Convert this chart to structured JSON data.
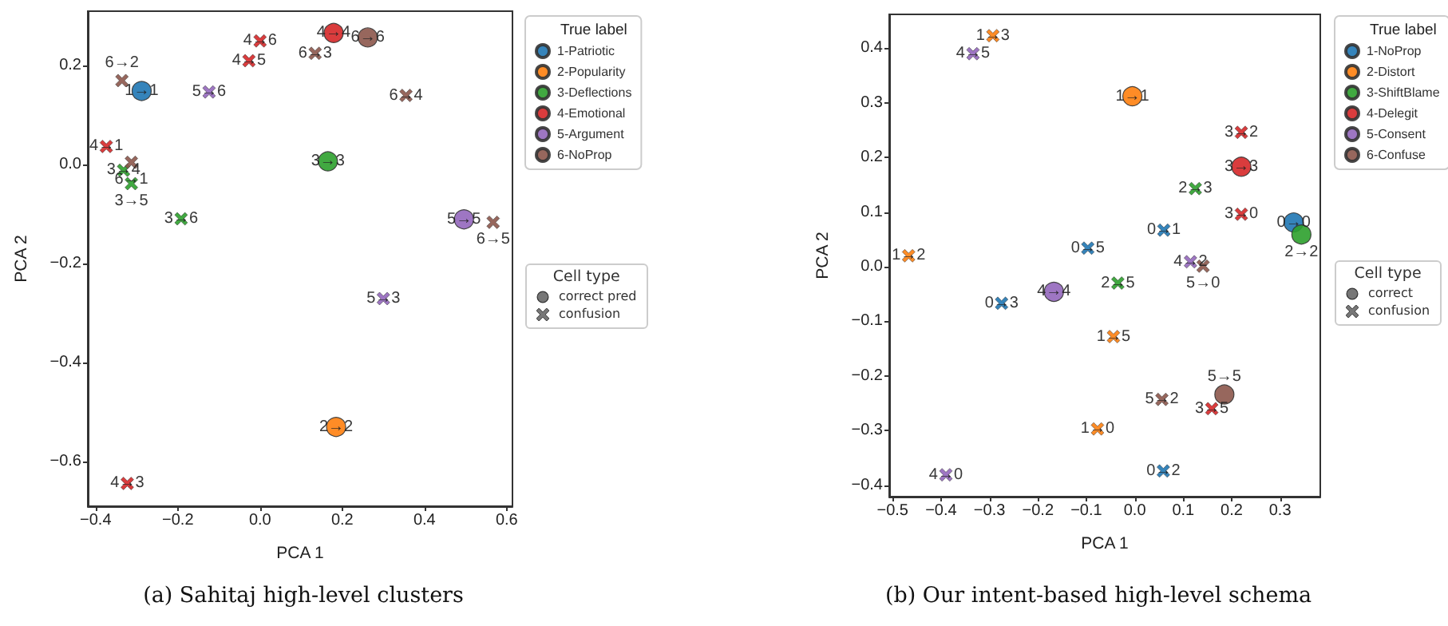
{
  "chart_data": [
    {
      "type": "scatter",
      "title": "(a) Sahitaj high-level clusters",
      "xlabel": "PCA 1",
      "ylabel": "PCA 2",
      "legend_title": "True label",
      "legend": "right",
      "grid": false,
      "xlim": [
        -0.419,
        0.614
      ],
      "ylim": [
        -0.69,
        0.309
      ],
      "xticks": [
        {
          "value": -0.4,
          "label": "−0.4"
        },
        {
          "value": -0.2,
          "label": "−0.2"
        },
        {
          "value": 0,
          "label": "0.0"
        },
        {
          "value": 0.2,
          "label": "0.2"
        },
        {
          "value": 0.4,
          "label": "0.4"
        },
        {
          "value": 0.6,
          "label": "0.6"
        }
      ],
      "yticks": [
        {
          "value": -0.6,
          "label": "−0.6"
        },
        {
          "value": -0.4,
          "label": "−0.4"
        },
        {
          "value": -0.2,
          "label": "−0.2"
        },
        {
          "value": 0,
          "label": "0.0"
        },
        {
          "value": 0.2,
          "label": "0.2"
        }
      ],
      "annotations": [
        "Cell type",
        "correct pred",
        "confusion"
      ],
      "series": [
        {
          "name": "1-Patriotic",
          "color": "#1f77b4",
          "marker": "circle",
          "x": [
            -0.288
          ],
          "values": [
            0.148
          ],
          "value_labels": [
            "1→1"
          ]
        },
        {
          "name": "2-Popularity",
          "color": "#ff7f0e",
          "marker": "circle",
          "x": [
            0.185
          ],
          "values": [
            -0.53
          ],
          "value_labels": [
            "2→2"
          ]
        },
        {
          "name": "3-Deflections",
          "color": "#2ca02c",
          "marker": "circle",
          "x": [
            0.165
          ],
          "values": [
            0.006
          ],
          "value_labels": [
            "3→3"
          ]
        },
        {
          "color": "#2ca02c",
          "marker": "cross",
          "x": [
            -0.332,
            -0.313,
            -0.192
          ],
          "values": [
            -0.012,
            -0.039,
            -0.11
          ],
          "value_labels": [
            "3→4",
            "3→5",
            "3→6"
          ]
        },
        {
          "name": "4-Emotional",
          "color": "#d62728",
          "marker": "circle",
          "x": [
            0.179
          ],
          "values": [
            0.265
          ],
          "value_labels": [
            "4→4"
          ]
        },
        {
          "color": "#d62728",
          "marker": "cross",
          "x": [
            0.0,
            -0.027,
            -0.374,
            -0.323
          ],
          "values": [
            0.249,
            0.209,
            0.036,
            -0.644
          ],
          "value_labels": [
            "4→6",
            "4→5",
            "4→1",
            "4→3"
          ]
        },
        {
          "name": "5-Argument",
          "color": "#9467bd",
          "marker": "circle",
          "x": [
            0.496
          ],
          "values": [
            -0.111
          ],
          "value_labels": [
            "5→5"
          ]
        },
        {
          "color": "#9467bd",
          "marker": "cross",
          "x": [
            -0.124,
            0.3
          ],
          "values": [
            0.146,
            -0.271
          ],
          "value_labels": [
            "5→6",
            "5→3"
          ]
        },
        {
          "name": "6-NoProp",
          "color": "#8c564b",
          "marker": "circle",
          "x": [
            0.262
          ],
          "values": [
            0.256
          ],
          "value_labels": [
            "6→6"
          ]
        },
        {
          "color": "#8c564b",
          "marker": "cross",
          "x": [
            -0.336,
            0.134,
            0.355,
            -0.313,
            0.567
          ],
          "values": [
            0.169,
            0.224,
            0.139,
            0.004,
            -0.117
          ],
          "value_labels": [
            "6→2",
            "6→3",
            "6→4",
            "6→1",
            "6→5"
          ]
        }
      ]
    },
    {
      "type": "scatter",
      "title": "(b) Our intent-based high-level schema",
      "xlabel": "PCA 1",
      "ylabel": "PCA 2",
      "legend_title": "True label",
      "legend": "right",
      "grid": false,
      "xlim": [
        -0.507,
        0.383
      ],
      "ylim": [
        -0.421,
        0.462
      ],
      "xticks": [
        {
          "value": -0.5,
          "label": "−0.5"
        },
        {
          "value": -0.4,
          "label": "−0.4"
        },
        {
          "value": -0.3,
          "label": "−0.3"
        },
        {
          "value": -0.2,
          "label": "−0.2"
        },
        {
          "value": -0.1,
          "label": "−0.1"
        },
        {
          "value": 0,
          "label": "0.0"
        },
        {
          "value": 0.1,
          "label": "0.1"
        },
        {
          "value": 0.2,
          "label": "0.2"
        },
        {
          "value": 0.3,
          "label": "0.3"
        }
      ],
      "yticks": [
        {
          "value": -0.4,
          "label": "−0.4"
        },
        {
          "value": -0.3,
          "label": "−0.3"
        },
        {
          "value": -0.2,
          "label": "−0.2"
        },
        {
          "value": -0.1,
          "label": "−0.1"
        },
        {
          "value": 0,
          "label": "0.0"
        },
        {
          "value": 0.1,
          "label": "0.1"
        },
        {
          "value": 0.2,
          "label": "0.2"
        },
        {
          "value": 0.3,
          "label": "0.3"
        },
        {
          "value": 0.4,
          "label": "0.4"
        }
      ],
      "annotations": [
        "Cell type",
        "correct",
        "confusion"
      ],
      "series": [
        {
          "name": "1-NoProp",
          "color": "#1f77b4",
          "marker": "circle",
          "x": [
            0.328
          ],
          "values": [
            0.081
          ],
          "value_labels": [
            "0→0"
          ]
        },
        {
          "color": "#1f77b4",
          "marker": "cross",
          "x": [
            0.06,
            -0.097,
            -0.275,
            0.059
          ],
          "values": [
            0.067,
            0.034,
            -0.067,
            -0.374
          ],
          "value_labels": [
            "0→1",
            "0→5",
            "0→3",
            "0→2"
          ]
        },
        {
          "name": "2-Distort",
          "color": "#ff7f0e",
          "marker": "circle",
          "x": [
            -0.005
          ],
          "values": [
            0.312
          ],
          "value_labels": [
            "1→1"
          ]
        },
        {
          "color": "#ff7f0e",
          "marker": "cross",
          "x": [
            -0.293,
            -0.467,
            -0.044,
            -0.077
          ],
          "values": [
            0.423,
            0.02,
            -0.128,
            -0.297
          ],
          "value_labels": [
            "1→3",
            "1→2",
            "1→5",
            "1→0"
          ]
        },
        {
          "name": "3-ShiftBlame",
          "color": "#2ca02c",
          "marker": "circle",
          "x": [
            0.344
          ],
          "values": [
            0.059
          ],
          "value_labels": [
            "2→2"
          ]
        },
        {
          "color": "#2ca02c",
          "marker": "cross",
          "x": [
            0.125,
            -0.035
          ],
          "values": [
            0.143,
            -0.03
          ],
          "value_labels": [
            "2→3",
            "2→5"
          ]
        },
        {
          "name": "4-Delegit",
          "color": "#d62728",
          "marker": "circle",
          "x": [
            0.22
          ],
          "values": [
            0.183
          ],
          "value_labels": [
            "3→3"
          ]
        },
        {
          "color": "#d62728",
          "marker": "cross",
          "x": [
            0.22,
            0.22,
            0.159
          ],
          "values": [
            0.246,
            0.096,
            -0.26
          ],
          "value_labels": [
            "3→2",
            "3→0",
            "3→5"
          ]
        },
        {
          "name": "5-Consent",
          "color": "#9467bd",
          "marker": "circle",
          "x": [
            -0.167
          ],
          "values": [
            -0.046
          ],
          "value_labels": [
            "4→4"
          ]
        },
        {
          "color": "#9467bd",
          "marker": "cross",
          "x": [
            -0.334,
            0.115,
            -0.39
          ],
          "values": [
            0.39,
            0.009,
            -0.381
          ],
          "value_labels": [
            "4→5",
            "4→2",
            "4→0"
          ]
        },
        {
          "name": "6-Confuse",
          "color": "#8c564b",
          "marker": "circle",
          "x": [
            0.185
          ],
          "values": [
            -0.234
          ],
          "value_labels": [
            "5→5"
          ]
        },
        {
          "color": "#8c564b",
          "marker": "cross",
          "x": [
            0.141,
            0.056
          ],
          "values": [
            0.001,
            -0.243
          ],
          "value_labels": [
            "5→0",
            "5→2"
          ]
        }
      ]
    }
  ]
}
